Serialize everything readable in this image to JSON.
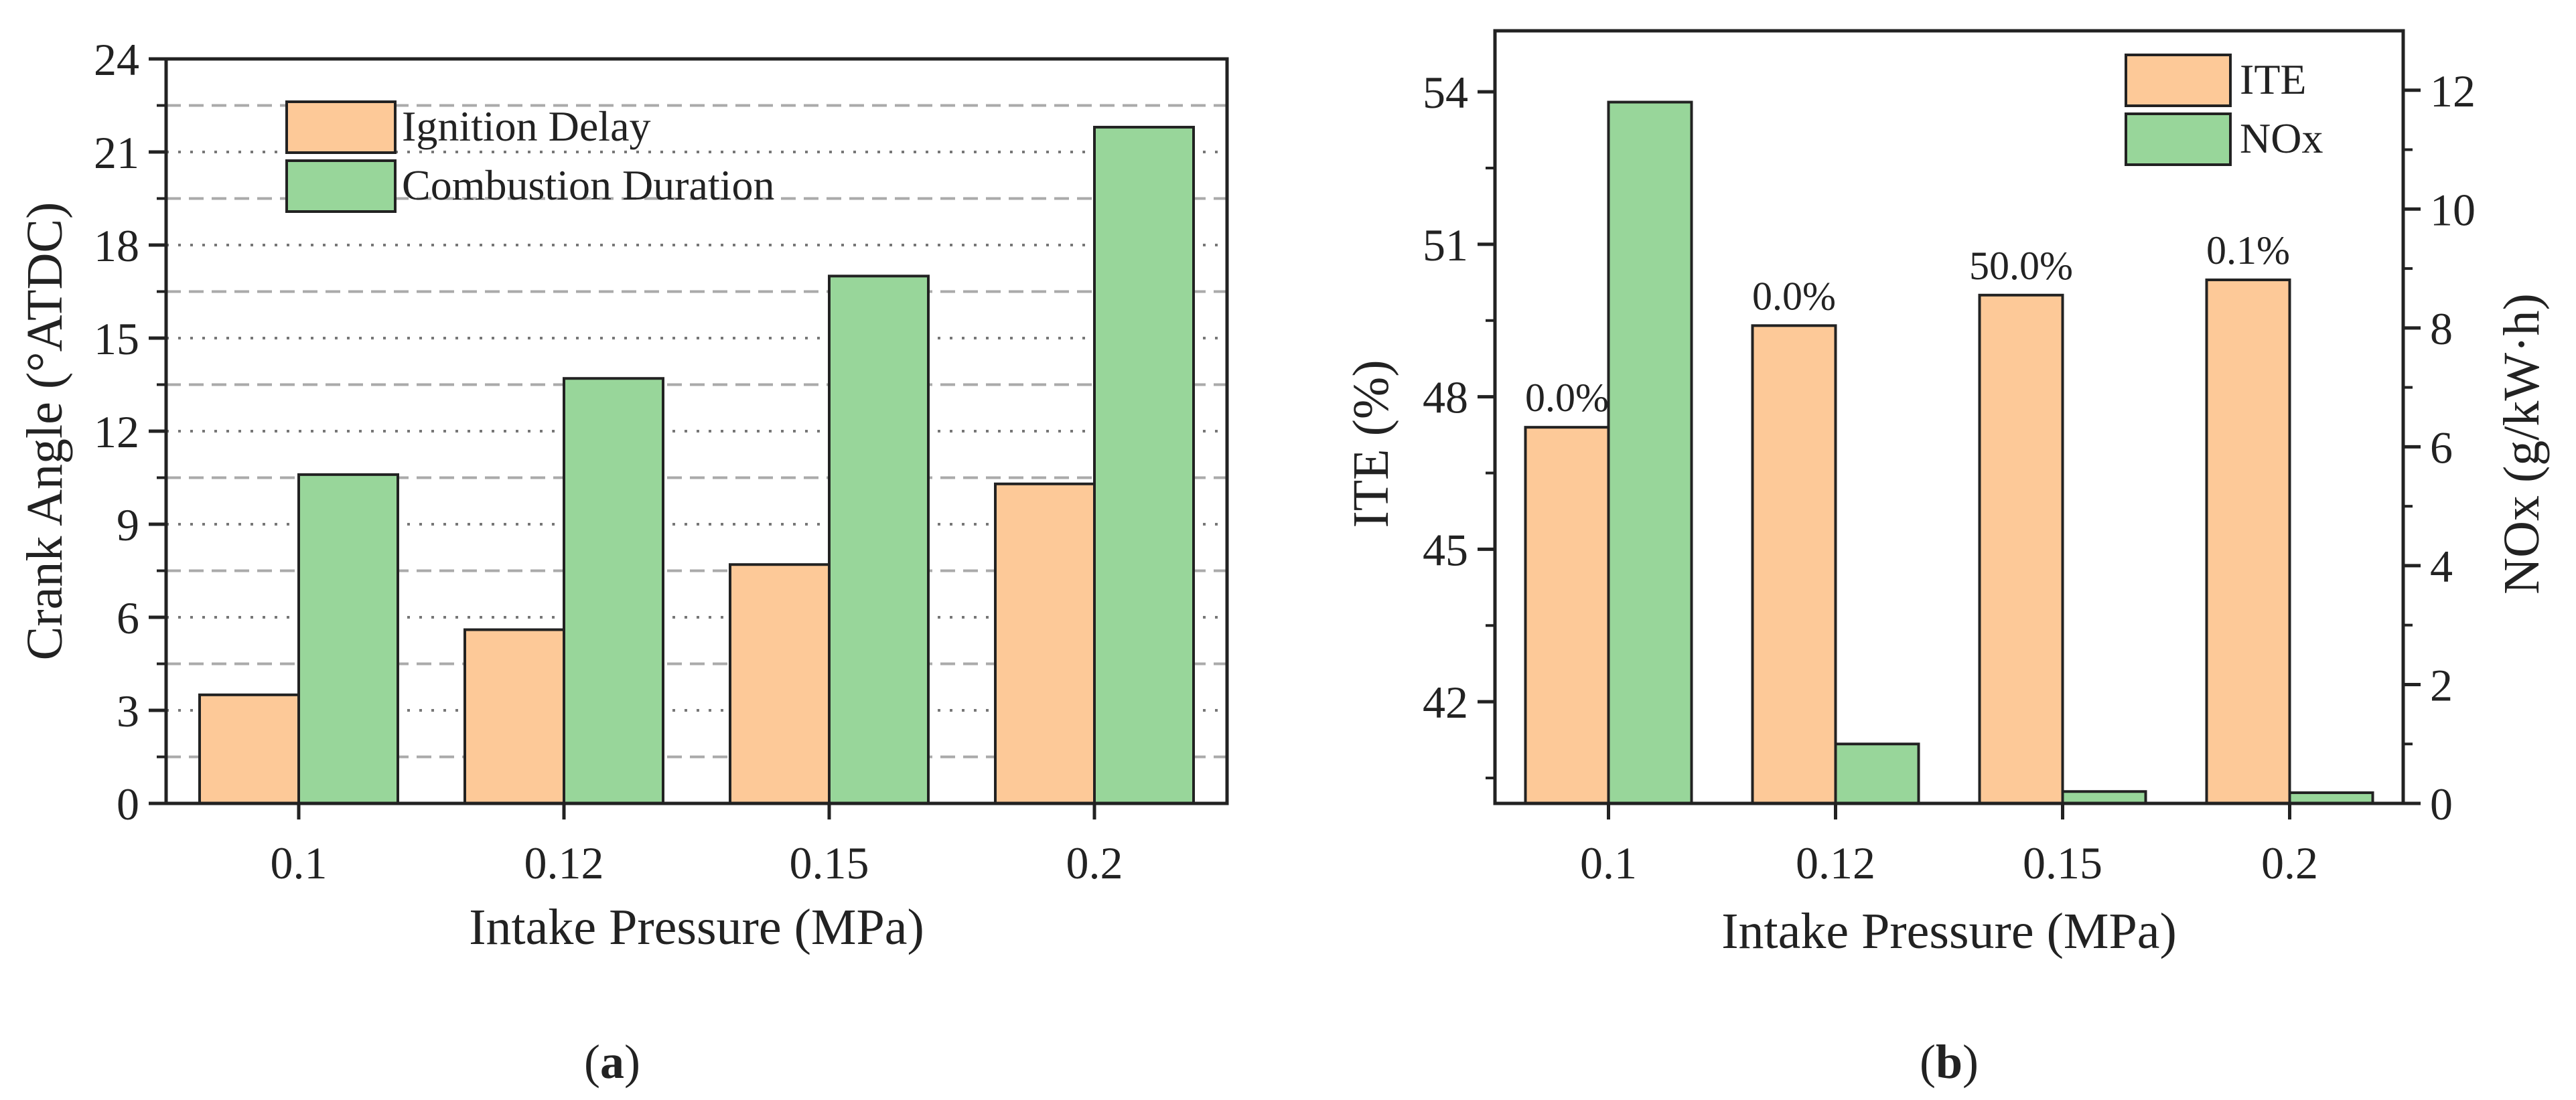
{
  "colors": {
    "ignition": "#FDC998",
    "combustion": "#98D69A",
    "ite": "#FDC998",
    "nox": "#98D69A",
    "axis": "#222222"
  },
  "chart_data": [
    {
      "id": "a",
      "panel_label": "a",
      "type": "bar",
      "categories": [
        "0.1",
        "0.12",
        "0.15",
        "0.2"
      ],
      "xlabel": "Intake Pressure (MPa)",
      "ylabel": "Crank Angle (°ATDC)",
      "ylim": [
        0,
        24
      ],
      "yticks": [
        0,
        3,
        6,
        9,
        12,
        15,
        18,
        21,
        24
      ],
      "grid": true,
      "legend_position": "top-left",
      "series": [
        {
          "name": "Ignition Delay",
          "values": [
            3.5,
            5.6,
            7.7,
            10.3
          ]
        },
        {
          "name": "Combustion Duration",
          "values": [
            10.6,
            13.7,
            17.0,
            21.8
          ]
        }
      ]
    },
    {
      "id": "b",
      "panel_label": "b",
      "type": "bar",
      "categories": [
        "0.1",
        "0.12",
        "0.15",
        "0.2"
      ],
      "xlabel": "Intake Pressure (MPa)",
      "ylabel": "ITE (%)",
      "ylabel_right": "NOx (g/kW·h)",
      "ylim": [
        40,
        55.2
      ],
      "yticks": [
        42,
        45,
        48,
        51,
        54
      ],
      "ylim_right": [
        0,
        13
      ],
      "yticks_right": [
        0,
        2,
        4,
        6,
        8,
        10,
        12
      ],
      "grid": false,
      "legend_position": "top-right",
      "series": [
        {
          "name": "ITE",
          "axis": "left",
          "values": [
            47.4,
            49.4,
            50.0,
            50.3
          ]
        },
        {
          "name": "NOx",
          "axis": "right",
          "values": [
            11.8,
            1.0,
            0.2,
            0.18
          ]
        }
      ],
      "annotations": [
        "0.0%",
        "0.0%",
        "50.0%",
        "0.1%"
      ]
    }
  ]
}
